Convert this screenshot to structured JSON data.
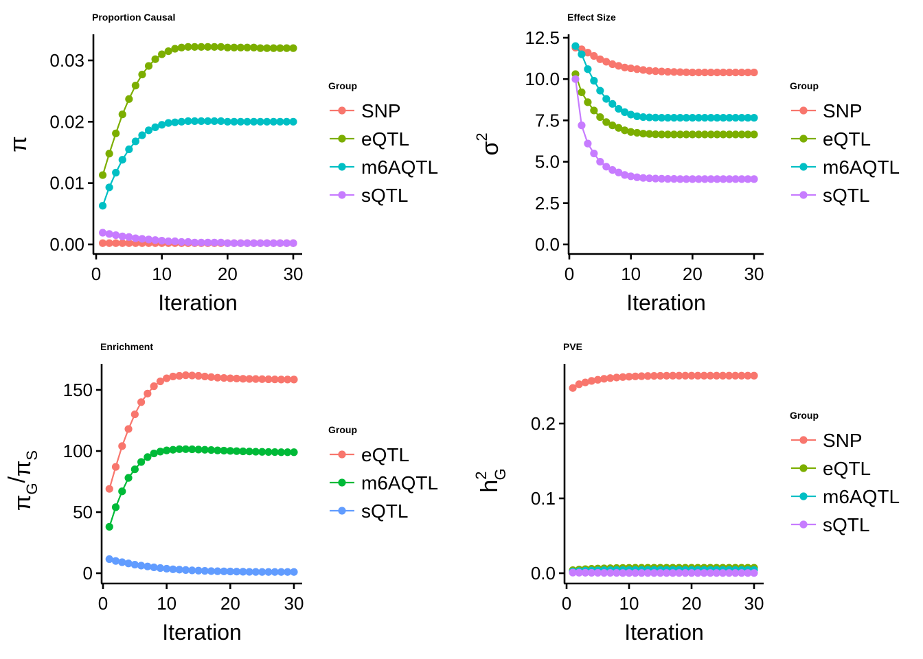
{
  "chart_data": [
    {
      "type": "line",
      "title": "Proportion Causal",
      "xlabel": "Iteration",
      "ylabel_symbol": "π",
      "xlim": [
        0,
        30
      ],
      "ylim": [
        0,
        0.033
      ],
      "xticks": [
        0,
        10,
        20,
        30
      ],
      "xtick_labels": [
        "0",
        "10",
        "20",
        "30"
      ],
      "yticks": [
        0,
        0.01,
        0.02,
        0.03
      ],
      "ytick_labels": [
        "0.00",
        "0.01",
        "0.02",
        "0.03"
      ],
      "legend_title": "Group",
      "legend_position": "right",
      "x": [
        1,
        2,
        3,
        4,
        5,
        6,
        7,
        8,
        9,
        10,
        11,
        12,
        13,
        14,
        15,
        16,
        17,
        18,
        19,
        20,
        21,
        22,
        23,
        24,
        25,
        26,
        27,
        28,
        29,
        30
      ],
      "series": [
        {
          "name": "SNP",
          "color": "#F8766D",
          "values": [
            0.0002,
            0.0002,
            0.0002,
            0.0002,
            0.0002,
            0.0002,
            0.0002,
            0.0002,
            0.0002,
            0.0002,
            0.0002,
            0.0002,
            0.0002,
            0.0002,
            0.0002,
            0.0002,
            0.0002,
            0.0002,
            0.0002,
            0.0002,
            0.0002,
            0.0002,
            0.0002,
            0.0002,
            0.0002,
            0.0002,
            0.0002,
            0.0002,
            0.0002,
            0.0002
          ]
        },
        {
          "name": "eQTL",
          "color": "#7CAE00",
          "values": [
            0.0113,
            0.0148,
            0.0181,
            0.0212,
            0.0237,
            0.0259,
            0.0277,
            0.0291,
            0.0302,
            0.031,
            0.0315,
            0.0319,
            0.0321,
            0.0322,
            0.0322,
            0.0322,
            0.0322,
            0.0322,
            0.0322,
            0.0321,
            0.0321,
            0.0321,
            0.0321,
            0.0321,
            0.032,
            0.032,
            0.032,
            0.032,
            0.032,
            0.032
          ]
        },
        {
          "name": "m6AQTL",
          "color": "#00BFC4",
          "values": [
            0.0063,
            0.0093,
            0.0117,
            0.0138,
            0.0155,
            0.0168,
            0.0178,
            0.0186,
            0.0191,
            0.0195,
            0.0198,
            0.0199,
            0.02,
            0.0201,
            0.0201,
            0.0201,
            0.0201,
            0.0201,
            0.0201,
            0.02,
            0.02,
            0.02,
            0.02,
            0.02,
            0.02,
            0.02,
            0.02,
            0.02,
            0.02,
            0.02
          ]
        },
        {
          "name": "sQTL",
          "color": "#C77CFF",
          "values": [
            0.0019,
            0.0017,
            0.0015,
            0.0013,
            0.0012,
            0.001,
            0.0009,
            0.0008,
            0.0007,
            0.0006,
            0.0005,
            0.0005,
            0.0004,
            0.0004,
            0.0003,
            0.0003,
            0.0003,
            0.0003,
            0.0003,
            0.0002,
            0.0002,
            0.0002,
            0.0002,
            0.0002,
            0.0002,
            0.0002,
            0.0002,
            0.0002,
            0.0002,
            0.0002
          ]
        }
      ]
    },
    {
      "type": "line",
      "title": "Effect Size",
      "xlabel": "Iteration",
      "ylabel_symbol": "σ",
      "ylabel_sup": "2",
      "xlim": [
        0,
        30
      ],
      "ylim": [
        0,
        12.5
      ],
      "xticks": [
        0,
        10,
        20,
        30
      ],
      "xtick_labels": [
        "0",
        "10",
        "20",
        "30"
      ],
      "yticks": [
        0,
        2.5,
        5,
        7.5,
        10,
        12.5
      ],
      "ytick_labels": [
        "0.0",
        "2.5",
        "5.0",
        "7.5",
        "10.0",
        "12.5"
      ],
      "legend_title": "Group",
      "legend_position": "right",
      "x": [
        1,
        2,
        3,
        4,
        5,
        6,
        7,
        8,
        9,
        10,
        11,
        12,
        13,
        14,
        15,
        16,
        17,
        18,
        19,
        20,
        21,
        22,
        23,
        24,
        25,
        26,
        27,
        28,
        29,
        30
      ],
      "series": [
        {
          "name": "SNP",
          "color": "#F8766D",
          "values": [
            11.9,
            11.8,
            11.6,
            11.4,
            11.2,
            11.05,
            10.9,
            10.8,
            10.7,
            10.65,
            10.6,
            10.55,
            10.5,
            10.48,
            10.46,
            10.44,
            10.43,
            10.42,
            10.41,
            10.4,
            10.4,
            10.4,
            10.4,
            10.4,
            10.4,
            10.4,
            10.4,
            10.4,
            10.4,
            10.4
          ]
        },
        {
          "name": "eQTL",
          "color": "#7CAE00",
          "values": [
            10.3,
            9.2,
            8.6,
            8.1,
            7.7,
            7.4,
            7.2,
            7.05,
            6.9,
            6.8,
            6.75,
            6.7,
            6.68,
            6.66,
            6.65,
            6.65,
            6.65,
            6.65,
            6.65,
            6.65,
            6.65,
            6.65,
            6.65,
            6.65,
            6.65,
            6.65,
            6.65,
            6.65,
            6.65,
            6.65
          ]
        },
        {
          "name": "m6AQTL",
          "color": "#00BFC4",
          "values": [
            12.0,
            11.5,
            10.6,
            9.9,
            9.3,
            8.8,
            8.5,
            8.2,
            8.0,
            7.85,
            7.75,
            7.7,
            7.68,
            7.67,
            7.66,
            7.66,
            7.66,
            7.66,
            7.66,
            7.66,
            7.66,
            7.66,
            7.66,
            7.66,
            7.66,
            7.66,
            7.66,
            7.66,
            7.66,
            7.66
          ]
        },
        {
          "name": "sQTL",
          "color": "#C77CFF",
          "values": [
            10.0,
            7.2,
            6.1,
            5.5,
            5.0,
            4.7,
            4.5,
            4.35,
            4.2,
            4.12,
            4.06,
            4.02,
            4.0,
            3.98,
            3.97,
            3.96,
            3.96,
            3.95,
            3.95,
            3.95,
            3.95,
            3.95,
            3.95,
            3.95,
            3.95,
            3.95,
            3.95,
            3.95,
            3.95,
            3.95
          ]
        }
      ]
    },
    {
      "type": "line",
      "title": "Enrichment",
      "xlabel": "Iteration",
      "ylabel_symbol": "π",
      "ylabel_sub": "G",
      "ylabel_slash": "/",
      "ylabel_symbol2": "π",
      "ylabel_sub2": "S",
      "xlim": [
        0,
        30
      ],
      "ylim": [
        0,
        165
      ],
      "xticks": [
        0,
        10,
        20,
        30
      ],
      "xtick_labels": [
        "0",
        "10",
        "20",
        "30"
      ],
      "yticks": [
        0,
        50,
        100,
        150
      ],
      "ytick_labels": [
        "0",
        "50",
        "100",
        "150"
      ],
      "legend_title": "Group",
      "legend_position": "right",
      "x": [
        1,
        2,
        3,
        4,
        5,
        6,
        7,
        8,
        9,
        10,
        11,
        12,
        13,
        14,
        15,
        16,
        17,
        18,
        19,
        20,
        21,
        22,
        23,
        24,
        25,
        26,
        27,
        28,
        29,
        30
      ],
      "series": [
        {
          "name": "eQTL",
          "color": "#F8766D",
          "values": [
            69,
            87,
            104,
            118,
            130,
            140,
            147,
            153,
            157,
            159.5,
            161,
            161.5,
            162,
            161.8,
            161.5,
            161,
            160.5,
            160,
            159.8,
            159.5,
            159.3,
            159.1,
            159,
            158.9,
            158.8,
            158.7,
            158.6,
            158.5,
            158.5,
            158.5
          ]
        },
        {
          "name": "m6AQTL",
          "color": "#00BA38",
          "values": [
            38,
            54,
            67,
            78,
            85,
            91,
            95,
            98,
            99.5,
            100.5,
            101,
            101.5,
            101.5,
            101.4,
            101.2,
            101,
            100.8,
            100.5,
            100.3,
            100.1,
            99.9,
            99.7,
            99.6,
            99.4,
            99.3,
            99.2,
            99.1,
            99,
            99,
            99
          ]
        },
        {
          "name": "sQTL",
          "color": "#619CFF",
          "values": [
            11.5,
            10,
            9,
            8,
            7,
            6.2,
            5.5,
            4.8,
            4.2,
            3.7,
            3.2,
            2.9,
            2.6,
            2.3,
            2.1,
            1.9,
            1.7,
            1.6,
            1.5,
            1.4,
            1.3,
            1.2,
            1.1,
            1.05,
            1,
            1,
            1,
            1,
            1,
            1
          ]
        }
      ]
    },
    {
      "type": "line",
      "title": "PVE",
      "xlabel": "Iteration",
      "ylabel_symbol": "h",
      "ylabel_sup": "2",
      "ylabel_sub": "G",
      "xlim": [
        0,
        30
      ],
      "ylim": [
        0,
        0.27
      ],
      "xticks": [
        0,
        10,
        20,
        30
      ],
      "xtick_labels": [
        "0",
        "10",
        "20",
        "30"
      ],
      "yticks": [
        0,
        0.1,
        0.2
      ],
      "ytick_labels": [
        "0.0",
        "0.1",
        "0.2"
      ],
      "legend_title": "Group",
      "legend_position": "right",
      "x": [
        1,
        2,
        3,
        4,
        5,
        6,
        7,
        8,
        9,
        10,
        11,
        12,
        13,
        14,
        15,
        16,
        17,
        18,
        19,
        20,
        21,
        22,
        23,
        24,
        25,
        26,
        27,
        28,
        29,
        30
      ],
      "series": [
        {
          "name": "SNP",
          "color": "#F8766D",
          "values": [
            0.2475,
            0.2525,
            0.255,
            0.257,
            0.2585,
            0.2598,
            0.2608,
            0.2615,
            0.2621,
            0.2626,
            0.263,
            0.2633,
            0.2635,
            0.2637,
            0.2638,
            0.2639,
            0.264,
            0.264,
            0.264,
            0.264,
            0.264,
            0.264,
            0.264,
            0.264,
            0.264,
            0.264,
            0.264,
            0.264,
            0.264,
            0.264
          ]
        },
        {
          "name": "eQTL",
          "color": "#7CAE00",
          "values": [
            0.004,
            0.0048,
            0.0054,
            0.0059,
            0.0062,
            0.0065,
            0.0067,
            0.0069,
            0.007,
            0.0071,
            0.0072,
            0.0072,
            0.0073,
            0.0073,
            0.0073,
            0.0073,
            0.0073,
            0.0073,
            0.0073,
            0.0073,
            0.0073,
            0.0073,
            0.0073,
            0.0073,
            0.0073,
            0.0073,
            0.0073,
            0.0073,
            0.0073,
            0.0073
          ]
        },
        {
          "name": "m6AQTL",
          "color": "#00BFC4",
          "values": [
            0.0022,
            0.0028,
            0.0032,
            0.0035,
            0.0037,
            0.0039,
            0.004,
            0.0041,
            0.0042,
            0.0042,
            0.0043,
            0.0043,
            0.0043,
            0.0043,
            0.0043,
            0.0043,
            0.0043,
            0.0043,
            0.0043,
            0.0043,
            0.0043,
            0.0043,
            0.0043,
            0.0043,
            0.0043,
            0.0043,
            0.0043,
            0.0043,
            0.0043,
            0.0043
          ]
        },
        {
          "name": "sQTL",
          "color": "#C77CFF",
          "values": [
            0.0008,
            0.0007,
            0.0006,
            0.0005,
            0.0005,
            0.0004,
            0.0004,
            0.0004,
            0.0003,
            0.0003,
            0.0003,
            0.0003,
            0.0003,
            0.0003,
            0.0003,
            0.0003,
            0.0003,
            0.0003,
            0.0003,
            0.0003,
            0.0003,
            0.0003,
            0.0003,
            0.0003,
            0.0003,
            0.0003,
            0.0003,
            0.0003,
            0.0003,
            0.0003
          ]
        }
      ]
    }
  ]
}
